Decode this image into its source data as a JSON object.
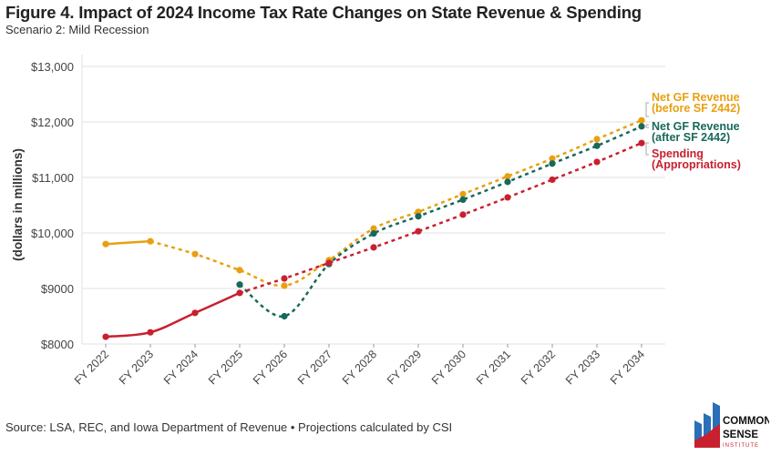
{
  "title": "Figure 4. Impact of 2024 Income Tax Rate Changes on State Revenue & Spending",
  "subtitle": "Scenario 2: Mild Recession",
  "source": "Source: LSA, REC, and Iowa Department of Revenue • Projections calculated by CSI",
  "logo": {
    "line1": "COMMON",
    "line2": "SENSE",
    "line3": "INSTITUTE"
  },
  "chart_data": {
    "type": "line",
    "title": "Figure 4. Impact of 2024 Income Tax Rate Changes on State Revenue & Spending",
    "subtitle": "Scenario 2: Mild Recession",
    "ylabel": "(dollars in millions)",
    "xlabel": "",
    "ylim": [
      8000,
      13000
    ],
    "yticks": [
      8000,
      9000,
      10000,
      11000,
      12000,
      13000
    ],
    "ytick_labels": [
      "$8000",
      "$9000",
      "$10,000",
      "$11,000",
      "$12,000",
      "$13,000"
    ],
    "grid": "horizontal",
    "legend": "right (direct labels)",
    "categories": [
      "FY 2022",
      "FY 2023",
      "FY 2024",
      "FY 2025",
      "FY 2026",
      "FY 2027",
      "FY 2028",
      "FY 2029",
      "FY 2030",
      "FY 2031",
      "FY 2032",
      "FY 2033",
      "FY 2034"
    ],
    "series": [
      {
        "name": "Net GF Revenue (before SF 2442)",
        "label1": "Net GF Revenue",
        "label2": "(before SF 2442)",
        "color": "#E8A010",
        "values": [
          9800,
          9850,
          9620,
          9330,
          9050,
          9510,
          10080,
          10380,
          10700,
          11020,
          11340,
          11690,
          12030
        ],
        "actual_through": "FY 2023"
      },
      {
        "name": "Net GF Revenue (after SF 2442)",
        "label1": "Net GF Revenue",
        "label2": "(after SF 2442)",
        "color": "#17695A",
        "values": [
          null,
          null,
          null,
          9070,
          8500,
          9440,
          9990,
          10300,
          10600,
          10920,
          11250,
          11570,
          11920
        ],
        "actual_through": null
      },
      {
        "name": "Spending (Appropriations)",
        "label1": "Spending",
        "label2": "(Appropriations)",
        "color": "#C8202F",
        "values": [
          8130,
          8210,
          8560,
          8920,
          9180,
          9460,
          9740,
          10030,
          10330,
          10640,
          10960,
          11280,
          11620
        ],
        "actual_through": "FY 2025"
      }
    ]
  }
}
